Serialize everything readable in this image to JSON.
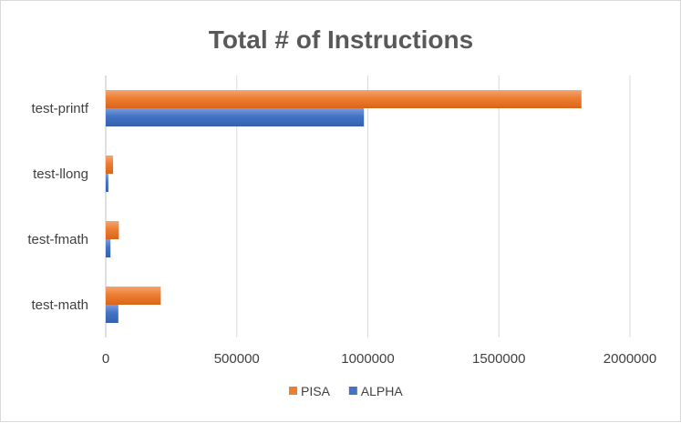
{
  "chart_data": {
    "type": "bar",
    "orientation": "horizontal",
    "title": "Total # of Instructions",
    "categories": [
      "test-printf",
      "test-llong",
      "test-fmath",
      "test-math"
    ],
    "series": [
      {
        "name": "PISA",
        "color": "#ED7D31",
        "values": [
          1815000,
          28000,
          50000,
          210000
        ]
      },
      {
        "name": "ALPHA",
        "color": "#4472C4",
        "values": [
          985000,
          10000,
          18000,
          48000
        ]
      }
    ],
    "x_ticks": [
      "0",
      "500000",
      "1000000",
      "1500000",
      "2000000"
    ],
    "xlim": [
      0,
      2000000
    ],
    "xlabel": "",
    "ylabel": "",
    "grid": true,
    "legend": "bottom"
  }
}
